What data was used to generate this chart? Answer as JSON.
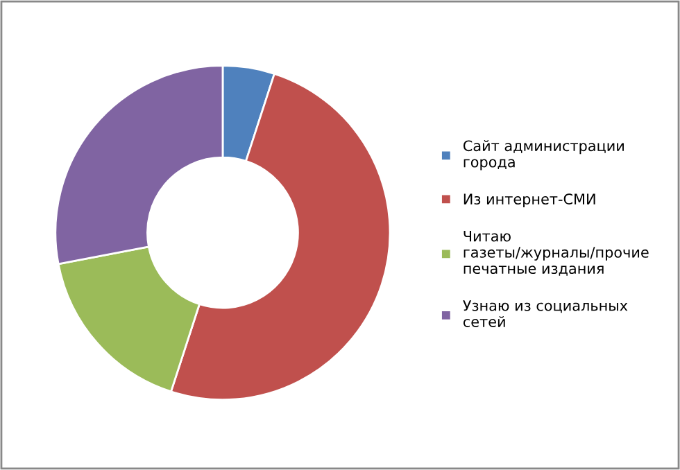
{
  "chart_data": {
    "type": "donut",
    "categories": [
      "Сайт администрации города",
      "Из интернет-СМИ",
      "Читаю газеты/журналы/прочие печатные издания",
      "Узнаю из социальных сетей"
    ],
    "values": [
      5,
      50,
      17,
      28
    ],
    "colors": [
      "#4f81bd",
      "#c0504d",
      "#9bbb59",
      "#8064a2"
    ],
    "legend": "right"
  }
}
